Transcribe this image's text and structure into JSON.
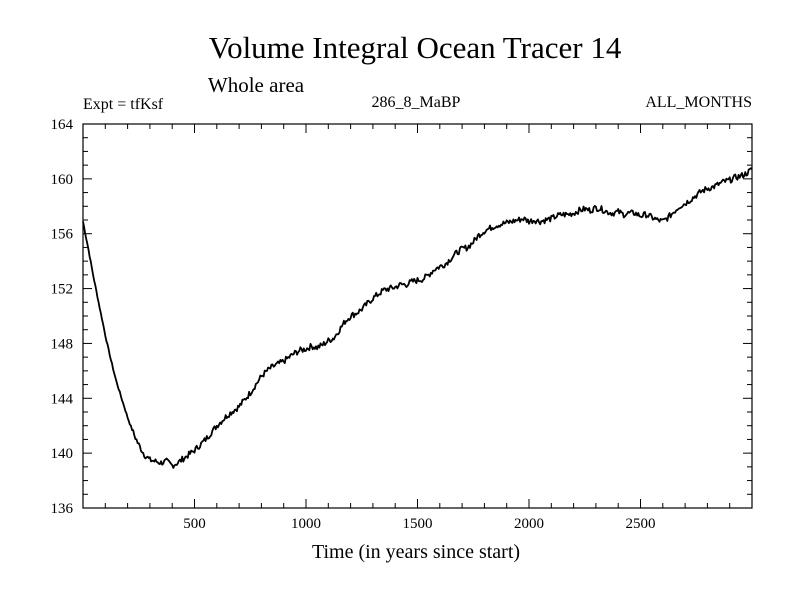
{
  "chart_data": {
    "type": "line",
    "title": "Volume Integral Ocean Tracer 14",
    "subtitle": "Whole area",
    "experiment_label": "Expt = tfKsf",
    "center_label": "286_8_MaBP",
    "right_label": "ALL_MONTHS",
    "xlabel": "Time (in years since start)",
    "ylabel": "",
    "xlim": [
      0,
      3000
    ],
    "ylim": [
      136,
      164
    ],
    "x_ticks": [
      500,
      1000,
      1500,
      2000,
      2500
    ],
    "y_ticks": [
      136,
      140,
      144,
      148,
      152,
      156,
      160,
      164
    ],
    "colors": {
      "line": "#000000",
      "background": "#ffffff"
    },
    "series": [
      {
        "name": "Tracer 14",
        "points": [
          [
            0,
            156.9
          ],
          [
            25,
            154.8
          ],
          [
            50,
            152.6
          ],
          [
            75,
            150.6
          ],
          [
            100,
            148.6
          ],
          [
            125,
            146.8
          ],
          [
            150,
            145.2
          ],
          [
            175,
            143.9
          ],
          [
            200,
            142.6
          ],
          [
            225,
            141.5
          ],
          [
            250,
            140.6
          ],
          [
            275,
            139.9
          ],
          [
            300,
            139.5
          ],
          [
            325,
            139.4
          ],
          [
            350,
            139.3
          ],
          [
            375,
            139.4
          ],
          [
            400,
            139.1
          ],
          [
            425,
            139.3
          ],
          [
            450,
            139.6
          ],
          [
            475,
            139.9
          ],
          [
            500,
            140.2
          ],
          [
            525,
            140.6
          ],
          [
            550,
            141.0
          ],
          [
            575,
            141.5
          ],
          [
            600,
            142.0
          ],
          [
            625,
            142.4
          ],
          [
            650,
            142.8
          ],
          [
            675,
            143.1
          ],
          [
            700,
            143.4
          ],
          [
            725,
            143.9
          ],
          [
            750,
            144.4
          ],
          [
            775,
            145.0
          ],
          [
            800,
            145.6
          ],
          [
            825,
            146.0
          ],
          [
            850,
            146.3
          ],
          [
            875,
            146.5
          ],
          [
            900,
            146.7
          ],
          [
            925,
            147.0
          ],
          [
            950,
            147.3
          ],
          [
            975,
            147.5
          ],
          [
            1000,
            147.6
          ],
          [
            1025,
            147.8
          ],
          [
            1050,
            147.7
          ],
          [
            1075,
            147.9
          ],
          [
            1100,
            148.2
          ],
          [
            1125,
            148.4
          ],
          [
            1150,
            149.0
          ],
          [
            1175,
            149.6
          ],
          [
            1200,
            150.0
          ],
          [
            1225,
            150.2
          ],
          [
            1250,
            150.5
          ],
          [
            1275,
            150.9
          ],
          [
            1300,
            151.3
          ],
          [
            1325,
            151.6
          ],
          [
            1350,
            151.9
          ],
          [
            1375,
            152.0
          ],
          [
            1400,
            152.1
          ],
          [
            1425,
            152.3
          ],
          [
            1450,
            152.3
          ],
          [
            1475,
            152.5
          ],
          [
            1500,
            152.6
          ],
          [
            1525,
            152.7
          ],
          [
            1550,
            153.0
          ],
          [
            1575,
            153.4
          ],
          [
            1600,
            153.6
          ],
          [
            1625,
            153.8
          ],
          [
            1650,
            154.2
          ],
          [
            1675,
            154.6
          ],
          [
            1700,
            154.9
          ],
          [
            1725,
            155.0
          ],
          [
            1750,
            155.4
          ],
          [
            1775,
            155.9
          ],
          [
            1800,
            156.2
          ],
          [
            1825,
            156.4
          ],
          [
            1850,
            156.6
          ],
          [
            1875,
            156.7
          ],
          [
            1900,
            156.8
          ],
          [
            1925,
            156.9
          ],
          [
            1950,
            157.0
          ],
          [
            1975,
            157.1
          ],
          [
            2000,
            156.9
          ],
          [
            2025,
            157.0
          ],
          [
            2050,
            156.9
          ],
          [
            2075,
            157.0
          ],
          [
            2100,
            157.1
          ],
          [
            2125,
            157.3
          ],
          [
            2150,
            157.4
          ],
          [
            2175,
            157.4
          ],
          [
            2200,
            157.5
          ],
          [
            2225,
            157.7
          ],
          [
            2250,
            157.8
          ],
          [
            2275,
            157.7
          ],
          [
            2300,
            157.9
          ],
          [
            2325,
            157.8
          ],
          [
            2350,
            157.6
          ],
          [
            2375,
            157.5
          ],
          [
            2400,
            157.6
          ],
          [
            2425,
            157.4
          ],
          [
            2450,
            157.5
          ],
          [
            2475,
            157.5
          ],
          [
            2500,
            157.3
          ],
          [
            2525,
            157.4
          ],
          [
            2550,
            157.2
          ],
          [
            2575,
            157.0
          ],
          [
            2600,
            156.9
          ],
          [
            2625,
            157.2
          ],
          [
            2650,
            157.6
          ],
          [
            2675,
            158.0
          ],
          [
            2700,
            158.2
          ],
          [
            2725,
            158.5
          ],
          [
            2750,
            158.8
          ],
          [
            2775,
            159.1
          ],
          [
            2800,
            159.3
          ],
          [
            2825,
            159.4
          ],
          [
            2850,
            159.6
          ],
          [
            2875,
            159.8
          ],
          [
            2900,
            159.9
          ],
          [
            2925,
            160.1
          ],
          [
            2950,
            160.2
          ],
          [
            2975,
            160.4
          ],
          [
            3000,
            160.7
          ]
        ]
      }
    ]
  }
}
